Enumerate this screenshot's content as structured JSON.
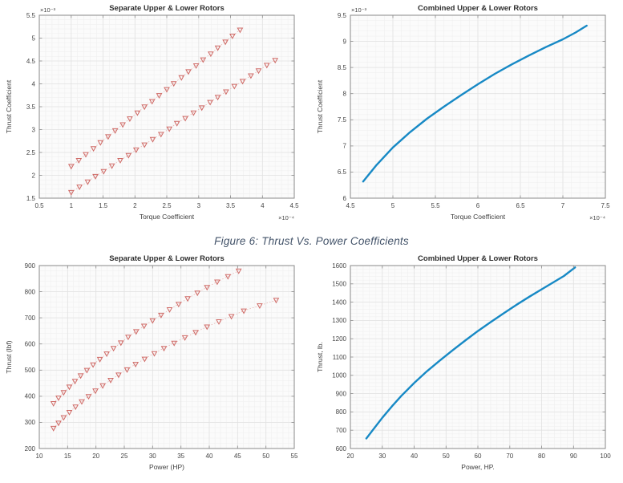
{
  "caption": {
    "text": "Figure 6: Thrust Vs. Power Coefficients",
    "color": "#44546A"
  },
  "colors": {
    "scatter": "#cf6a66",
    "scatter_line": "#e4aba8",
    "line": "#1789c5",
    "grid_minor": "#f0f0f0",
    "grid_major": "#e2e2e2",
    "plot_bg": "#fbfbfb",
    "axis_box": "#8a8a8a",
    "tick_text": "#454545",
    "title_text": "#2e2e2e",
    "label_text": "#3f3f3f"
  },
  "chart_data": [
    {
      "type": "scatter",
      "name": "separate-rotors-coefficients",
      "title": "Separate Upper & Lower Rotors",
      "xlabel": "Torque Coefficient",
      "ylabel": "Thrust Coefficient",
      "x_multiplier": "×10⁻⁴",
      "y_multiplier": "×10⁻³",
      "xlim": [
        0.5,
        4.5
      ],
      "ylim": [
        1.5,
        5.5
      ],
      "xticks": [
        0.5,
        1,
        1.5,
        2,
        2.5,
        3,
        3.5,
        4,
        4.5
      ],
      "yticks": [
        1.5,
        2,
        2.5,
        3,
        3.5,
        4,
        4.5,
        5,
        5.5
      ],
      "xtick_labels": [
        "0.5",
        "1",
        "1.5",
        "2",
        "2.5",
        "3",
        "3.5",
        "4",
        "4.5"
      ],
      "ytick_labels": [
        "1.5",
        "2",
        "2.5",
        "3",
        "3.5",
        "4",
        "4.5",
        "5",
        "5.5"
      ],
      "series": [
        {
          "name": "upper-rotor",
          "style": "markers",
          "marker": "triangle-down",
          "x": [
            1.0,
            1.12,
            1.23,
            1.35,
            1.46,
            1.58,
            1.69,
            1.81,
            1.92,
            2.04,
            2.15,
            2.27,
            2.38,
            2.5,
            2.61,
            2.73,
            2.84,
            2.96,
            3.07,
            3.19,
            3.3,
            3.42,
            3.53,
            3.65
          ],
          "y": [
            2.2,
            2.33,
            2.46,
            2.59,
            2.72,
            2.85,
            2.98,
            3.11,
            3.24,
            3.37,
            3.5,
            3.62,
            3.75,
            3.88,
            4.01,
            4.14,
            4.27,
            4.4,
            4.53,
            4.66,
            4.79,
            4.92,
            5.05,
            5.18
          ]
        },
        {
          "name": "lower-rotor",
          "style": "markers",
          "marker": "triangle-down",
          "x": [
            1.0,
            1.13,
            1.26,
            1.38,
            1.51,
            1.64,
            1.77,
            1.9,
            2.02,
            2.15,
            2.28,
            2.41,
            2.54,
            2.66,
            2.79,
            2.92,
            3.05,
            3.18,
            3.3,
            3.43,
            3.56,
            3.69,
            3.82,
            3.94,
            4.07,
            4.2
          ],
          "y": [
            1.63,
            1.75,
            1.86,
            1.98,
            2.09,
            2.21,
            2.33,
            2.44,
            2.56,
            2.67,
            2.79,
            2.9,
            3.02,
            3.14,
            3.25,
            3.37,
            3.48,
            3.6,
            3.71,
            3.83,
            3.95,
            4.06,
            4.18,
            4.29,
            4.41,
            4.52
          ]
        }
      ]
    },
    {
      "type": "line",
      "name": "combined-rotors-coefficients",
      "title": "Combined Upper & Lower Rotors",
      "xlabel": "Torque Coefficient",
      "ylabel": "Thrust Coefficient",
      "x_multiplier": "×10⁻⁴",
      "y_multiplier": "×10⁻³",
      "xlim": [
        4.5,
        7.5
      ],
      "ylim": [
        6,
        9.5
      ],
      "xticks": [
        4.5,
        5,
        5.5,
        6,
        6.5,
        7,
        7.5
      ],
      "yticks": [
        6,
        6.5,
        7,
        7.5,
        8,
        8.5,
        9,
        9.5
      ],
      "xtick_labels": [
        "4.5",
        "5",
        "5.5",
        "6",
        "6.5",
        "7",
        "7.5"
      ],
      "ytick_labels": [
        "6",
        "6.5",
        "7",
        "7.5",
        "8",
        "8.5",
        "9",
        "9.5"
      ],
      "series": [
        {
          "name": "combined-curve",
          "style": "line",
          "x": [
            4.65,
            4.8,
            5.0,
            5.2,
            5.4,
            5.6,
            5.8,
            6.0,
            6.2,
            6.4,
            6.6,
            6.8,
            7.0,
            7.15,
            7.28
          ],
          "y": [
            6.32,
            6.62,
            6.97,
            7.26,
            7.52,
            7.75,
            7.97,
            8.18,
            8.38,
            8.56,
            8.73,
            8.89,
            9.04,
            9.17,
            9.3
          ]
        }
      ]
    },
    {
      "type": "scatter",
      "name": "separate-rotors-thrust-power",
      "title": "Separate Upper & Lower Rotors",
      "xlabel": "Power (HP)",
      "ylabel": "Thrust (lbf)",
      "x_multiplier": "",
      "y_multiplier": "",
      "xlim": [
        10,
        55
      ],
      "ylim": [
        200,
        900
      ],
      "xticks": [
        10,
        15,
        20,
        25,
        30,
        35,
        40,
        45,
        50,
        55
      ],
      "yticks": [
        200,
        300,
        400,
        500,
        600,
        700,
        800,
        900
      ],
      "xtick_labels": [
        "10",
        "15",
        "20",
        "25",
        "30",
        "35",
        "40",
        "45",
        "50",
        "55"
      ],
      "ytick_labels": [
        "200",
        "300",
        "400",
        "500",
        "600",
        "700",
        "800",
        "900"
      ],
      "series": [
        {
          "name": "upper-rotor",
          "style": "markers",
          "marker": "triangle-down",
          "x": [
            12.5,
            13.4,
            14.3,
            15.3,
            16.3,
            17.3,
            18.4,
            19.5,
            20.7,
            21.9,
            23.1,
            24.4,
            25.7,
            27.1,
            28.5,
            30.0,
            31.5,
            33.0,
            34.6,
            36.2,
            37.9,
            39.6,
            41.4,
            43.3,
            45.2
          ],
          "y": [
            373,
            394,
            415,
            436,
            458,
            479,
            500,
            521,
            542,
            563,
            584,
            605,
            627,
            648,
            669,
            690,
            711,
            732,
            753,
            774,
            796,
            817,
            838,
            859,
            880
          ]
        },
        {
          "name": "lower-rotor",
          "style": "markers",
          "marker": "triangle-down",
          "x": [
            12.5,
            13.4,
            14.3,
            15.3,
            16.4,
            17.5,
            18.7,
            19.9,
            21.2,
            22.6,
            24.0,
            25.5,
            27.0,
            28.6,
            30.3,
            32.0,
            33.8,
            35.7,
            37.6,
            39.6,
            41.7,
            43.9,
            46.1,
            48.9,
            51.8
          ],
          "y": [
            278,
            298,
            319,
            339,
            360,
            380,
            400,
            421,
            441,
            462,
            482,
            502,
            523,
            543,
            564,
            584,
            604,
            625,
            645,
            666,
            686,
            706,
            727,
            747,
            768
          ]
        }
      ]
    },
    {
      "type": "line",
      "name": "combined-rotors-thrust-power",
      "title": "Combined Upper & Lower Rotors",
      "xlabel": "Power, HP.",
      "ylabel": "Thrust, lb.",
      "x_multiplier": "",
      "y_multiplier": "",
      "xlim": [
        20,
        100
      ],
      "ylim": [
        600,
        1600
      ],
      "xticks": [
        20,
        30,
        40,
        50,
        60,
        70,
        80,
        90,
        100
      ],
      "yticks": [
        600,
        700,
        800,
        900,
        1000,
        1100,
        1200,
        1300,
        1400,
        1500,
        1600
      ],
      "xtick_labels": [
        "20",
        "30",
        "40",
        "50",
        "60",
        "70",
        "80",
        "90",
        "100"
      ],
      "ytick_labels": [
        "600",
        "700",
        "800",
        "900",
        "1000",
        "1100",
        "1200",
        "1300",
        "1400",
        "1500",
        "1600"
      ],
      "series": [
        {
          "name": "combined-curve",
          "style": "line",
          "x": [
            25,
            27,
            30,
            33,
            36,
            40,
            44,
            48,
            52,
            56,
            60,
            64,
            68,
            72,
            76,
            80,
            84,
            87,
            90.5
          ],
          "y": [
            655,
            700,
            768,
            830,
            888,
            958,
            1022,
            1080,
            1136,
            1190,
            1242,
            1291,
            1338,
            1384,
            1428,
            1470,
            1512,
            1543,
            1590
          ]
        }
      ]
    }
  ]
}
